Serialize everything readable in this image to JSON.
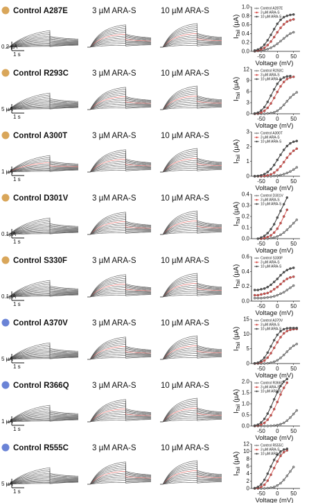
{
  "columns": {
    "c2": "3 µM ARA-S",
    "c3": "10 µM ARA-S"
  },
  "colors": {
    "orange_dot": "#d9a65a",
    "blue_dot": "#6a83d6",
    "control_line": "#333333",
    "control_marker": "#9a9a9a",
    "ara3": "#d9534f",
    "ara10": "#222222",
    "trace_grey": "#555555",
    "trace_red": "#d9534f"
  },
  "xaxis": {
    "label": "Voltage (mV)",
    "ticks": [
      "-50",
      "0",
      "50"
    ]
  },
  "yaxis": {
    "label_main": "I",
    "label_sub": "Tail",
    "label_unit": " (µA)"
  },
  "rows": [
    {
      "title": "Control A287E",
      "dot": "orange",
      "scale_current": "0.2 µA",
      "scale_time": "1 s",
      "y_ticks": [
        "0.0",
        "0.2",
        "0.4",
        "0.6",
        "0.8",
        "1.0"
      ],
      "legend": [
        "Control A287E",
        "3 µM ARA-S",
        "10 µM ARA-S"
      ]
    },
    {
      "title": "Control R293C",
      "dot": "orange",
      "scale_current": "5 µA",
      "scale_time": "1 s",
      "y_ticks": [
        "0",
        "3",
        "6",
        "9",
        "12"
      ],
      "legend": [
        "Control R293C",
        "3 µM ARA-S",
        "10 µM ARA-S"
      ]
    },
    {
      "title": "Control A300T",
      "dot": "orange",
      "scale_current": "1 µA",
      "scale_time": "1 s",
      "y_ticks": [
        "0",
        "1",
        "2",
        "3"
      ],
      "legend": [
        "Control A300T",
        "3 µM ARA-S",
        "10 µM ARA-S"
      ]
    },
    {
      "title": "Control D301V",
      "dot": "orange",
      "scale_current": "0.1µA",
      "scale_time": "1 s",
      "y_ticks": [
        "0.0",
        "0.1",
        "0.2",
        "0.3",
        "0.4"
      ],
      "legend": [
        "Control D301V",
        "3 µM ARA-S",
        "10 µM ARA-S"
      ]
    },
    {
      "title": "Control S330F",
      "dot": "orange",
      "scale_current": "0.1µA",
      "scale_time": "1 s",
      "y_ticks": [
        "0.0",
        "0.2",
        "0.4",
        "0.6"
      ],
      "legend": [
        "Control S330F",
        "3 µM ARA-S",
        "10 µM ARA-S"
      ]
    },
    {
      "title": "Control A370V",
      "dot": "blue",
      "scale_current": "5 µA",
      "scale_time": "1 s",
      "y_ticks": [
        "0",
        "5",
        "10",
        "15"
      ],
      "legend": [
        "Control A370V",
        "3 µM ARA-S",
        "10 µM ARA-S"
      ]
    },
    {
      "title": "Control R366Q",
      "dot": "blue",
      "scale_current": "1 µA",
      "scale_time": "1 s",
      "y_ticks": [
        "0.0",
        "0.5",
        "1.0",
        "1.5",
        "2.0"
      ],
      "legend": [
        "Control R366Q",
        "3 µM ARA-S",
        "10 µM ARA-S"
      ]
    },
    {
      "title": "Control R555C",
      "dot": "blue",
      "scale_current": "5 µA",
      "scale_time": "1 s",
      "y_ticks": [
        "0",
        "2",
        "4",
        "6",
        "8",
        "10",
        "12"
      ],
      "legend": [
        "Control R555C",
        "3 µM ARA-S",
        "10 µM ARA-S"
      ]
    }
  ],
  "chart_data": [
    {
      "type": "line",
      "row": "A287E",
      "xlim": [
        -80,
        70
      ],
      "ylim": [
        0,
        1.0
      ],
      "series": [
        {
          "name": "Control A287E",
          "x": [
            -70,
            -60,
            -50,
            -40,
            -30,
            -20,
            -10,
            0,
            10,
            20,
            30,
            40,
            50
          ],
          "y": [
            0.0,
            0.01,
            0.02,
            0.03,
            0.05,
            0.08,
            0.12,
            0.17,
            0.23,
            0.29,
            0.35,
            0.4,
            0.43
          ]
        },
        {
          "name": "3 µM ARA-S",
          "x": [
            -70,
            -60,
            -50,
            -40,
            -30,
            -20,
            -10,
            0,
            10,
            20,
            30,
            40,
            50
          ],
          "y": [
            0.01,
            0.02,
            0.04,
            0.08,
            0.14,
            0.22,
            0.32,
            0.43,
            0.53,
            0.61,
            0.67,
            0.7,
            0.72
          ]
        },
        {
          "name": "10 µM ARA-S",
          "x": [
            -70,
            -60,
            -50,
            -40,
            -30,
            -20,
            -10,
            0,
            10,
            20,
            30,
            40,
            50
          ],
          "y": [
            0.02,
            0.04,
            0.08,
            0.15,
            0.25,
            0.37,
            0.5,
            0.62,
            0.71,
            0.77,
            0.8,
            0.82,
            0.83
          ]
        }
      ]
    },
    {
      "type": "line",
      "row": "R293C",
      "xlim": [
        -80,
        70
      ],
      "ylim": [
        0,
        12
      ],
      "series": [
        {
          "name": "Control R293C",
          "x": [
            -70,
            -60,
            -50,
            -40,
            -30,
            -20,
            -10,
            0,
            10,
            20,
            30,
            40,
            50,
            60
          ],
          "y": [
            0,
            0,
            0,
            0,
            0.1,
            0.2,
            0.4,
            0.8,
            1.5,
            2.4,
            3.4,
            4.4,
            5.2,
            5.8
          ]
        },
        {
          "name": "3 µM ARA-S",
          "x": [
            -70,
            -60,
            -50,
            -40,
            -30,
            -20,
            -10,
            0,
            10,
            20,
            30,
            40,
            50
          ],
          "y": [
            0,
            0.1,
            0.3,
            0.8,
            1.6,
            2.8,
            4.3,
            5.9,
            7.4,
            8.6,
            9.4,
            9.8,
            10
          ]
        },
        {
          "name": "10 µM ARA-S",
          "x": [
            -70,
            -60,
            -50,
            -40,
            -30,
            -20,
            -10,
            0,
            10,
            20,
            30,
            40
          ],
          "y": [
            0.1,
            0.3,
            0.9,
            1.8,
            3.2,
            4.9,
            6.6,
            8.1,
            9.2,
            9.8,
            10.1,
            10.2
          ]
        }
      ]
    },
    {
      "type": "line",
      "row": "A300T",
      "xlim": [
        -80,
        70
      ],
      "ylim": [
        0,
        3
      ],
      "series": [
        {
          "name": "Control A300T",
          "x": [
            -70,
            -60,
            -50,
            -40,
            -30,
            -20,
            -10,
            0,
            10,
            20,
            30,
            40,
            50,
            60
          ],
          "y": [
            0,
            0,
            0,
            0,
            0,
            0,
            0.02,
            0.04,
            0.08,
            0.14,
            0.22,
            0.32,
            0.45,
            0.6
          ]
        },
        {
          "name": "3 µM ARA-S",
          "x": [
            -70,
            -60,
            -50,
            -40,
            -30,
            -20,
            -10,
            0,
            10,
            20,
            30,
            40,
            50,
            60
          ],
          "y": [
            0,
            0,
            0,
            0.02,
            0.06,
            0.12,
            0.24,
            0.42,
            0.66,
            0.95,
            1.25,
            1.52,
            1.72,
            1.86
          ]
        },
        {
          "name": "10 µM ARA-S",
          "x": [
            -70,
            -60,
            -50,
            -40,
            -30,
            -20,
            -10,
            0,
            10,
            20,
            30,
            40,
            50,
            60
          ],
          "y": [
            0,
            0.02,
            0.06,
            0.14,
            0.28,
            0.48,
            0.76,
            1.1,
            1.45,
            1.78,
            2.04,
            2.22,
            2.33,
            2.38
          ]
        }
      ]
    },
    {
      "type": "line",
      "row": "D301V",
      "xlim": [
        -80,
        70
      ],
      "ylim": [
        0,
        0.4
      ],
      "series": [
        {
          "name": "Control D301V",
          "x": [
            -50,
            -40,
            -30,
            -20,
            -10,
            0,
            10,
            20,
            30,
            40,
            50,
            60
          ],
          "y": [
            0.0,
            0.0,
            0.0,
            0.005,
            0.01,
            0.02,
            0.035,
            0.055,
            0.08,
            0.11,
            0.14,
            0.17
          ]
        },
        {
          "name": "3 µM ARA-S",
          "x": [
            -50,
            -40,
            -30,
            -20,
            -10,
            0,
            10,
            20,
            30
          ],
          "y": [
            0.0,
            0.005,
            0.015,
            0.03,
            0.055,
            0.09,
            0.14,
            0.2,
            0.26
          ]
        },
        {
          "name": "10 µM ARA-S",
          "x": [
            -60,
            -50,
            -40,
            -30,
            -20,
            -10,
            0,
            10,
            20,
            30
          ],
          "y": [
            0.0,
            0.01,
            0.025,
            0.05,
            0.085,
            0.13,
            0.19,
            0.25,
            0.31,
            0.37
          ]
        }
      ]
    },
    {
      "type": "line",
      "row": "S330F",
      "xlim": [
        -80,
        70
      ],
      "ylim": [
        0,
        0.6
      ],
      "series": [
        {
          "name": "Control S330F",
          "x": [
            -70,
            -60,
            -50,
            -40,
            -30,
            -20,
            -10,
            0,
            10,
            20,
            30,
            40,
            50
          ],
          "y": [
            0.04,
            0.04,
            0.04,
            0.045,
            0.05,
            0.055,
            0.065,
            0.08,
            0.1,
            0.12,
            0.15,
            0.18,
            0.21
          ]
        },
        {
          "name": "3 µM ARA-S",
          "x": [
            -70,
            -60,
            -50,
            -40,
            -30,
            -20,
            -10,
            0,
            10,
            20,
            30,
            40,
            50
          ],
          "y": [
            0.08,
            0.08,
            0.09,
            0.1,
            0.11,
            0.13,
            0.16,
            0.19,
            0.23,
            0.27,
            0.3,
            0.32,
            0.33
          ]
        },
        {
          "name": "10 µM ARA-S",
          "x": [
            -70,
            -60,
            -50,
            -40,
            -30,
            -20,
            -10,
            0,
            10,
            20,
            30,
            40,
            50
          ],
          "y": [
            0.15,
            0.15,
            0.16,
            0.17,
            0.19,
            0.22,
            0.26,
            0.3,
            0.35,
            0.39,
            0.42,
            0.44,
            0.45
          ]
        }
      ]
    },
    {
      "type": "line",
      "row": "A370V",
      "xlim": [
        -80,
        70
      ],
      "ylim": [
        0,
        15
      ],
      "series": [
        {
          "name": "Control A370V",
          "x": [
            -70,
            -60,
            -50,
            -40,
            -30,
            -20,
            -10,
            0,
            10,
            20,
            30,
            40,
            50,
            60
          ],
          "y": [
            0,
            0,
            0,
            0,
            0.1,
            0.3,
            0.6,
            1.1,
            1.9,
            2.9,
            4.0,
            5.1,
            6.0,
            6.6
          ]
        },
        {
          "name": "3 µM ARA-S",
          "x": [
            -70,
            -60,
            -50,
            -40,
            -30,
            -20,
            -10,
            0,
            10,
            20,
            30,
            40,
            50,
            60
          ],
          "y": [
            0,
            0.1,
            0.4,
            1.0,
            2.0,
            3.5,
            5.3,
            7.2,
            8.9,
            10.2,
            11.0,
            11.4,
            11.6,
            11.7
          ]
        },
        {
          "name": "10 µM ARA-S",
          "x": [
            -70,
            -60,
            -50,
            -40,
            -30,
            -20,
            -10,
            0,
            10,
            20,
            30,
            40,
            50,
            60
          ],
          "y": [
            0.1,
            0.3,
            0.9,
            2.0,
            3.7,
            5.8,
            7.9,
            9.7,
            10.9,
            11.6,
            11.9,
            12.0,
            12.0,
            12.0
          ]
        }
      ]
    },
    {
      "type": "line",
      "row": "R366Q",
      "xlim": [
        -80,
        70
      ],
      "ylim": [
        0,
        2.0
      ],
      "series": [
        {
          "name": "Control R366Q",
          "x": [
            -70,
            -60,
            -50,
            -40,
            -30,
            -20,
            -10,
            0,
            10,
            20,
            30,
            40,
            50,
            60
          ],
          "y": [
            0,
            0,
            0,
            0,
            0,
            0.01,
            0.02,
            0.04,
            0.08,
            0.14,
            0.24,
            0.38,
            0.54,
            0.7
          ]
        },
        {
          "name": "3 µM ARA-S",
          "x": [
            -70,
            -60,
            -50,
            -40,
            -30,
            -20,
            -10,
            0,
            10,
            20,
            30
          ],
          "y": [
            0,
            0.02,
            0.06,
            0.14,
            0.28,
            0.48,
            0.76,
            1.08,
            1.42,
            1.72,
            1.95
          ]
        },
        {
          "name": "10 µM ARA-S",
          "x": [
            -70,
            -60,
            -50,
            -40,
            -30,
            -20,
            -10,
            0,
            10,
            20,
            30
          ],
          "y": [
            0.02,
            0.06,
            0.16,
            0.32,
            0.56,
            0.86,
            1.2,
            1.52,
            1.8,
            2.0,
            2.12
          ]
        }
      ]
    },
    {
      "type": "line",
      "row": "R555C",
      "xlim": [
        -80,
        70
      ],
      "ylim": [
        0,
        12
      ],
      "series": [
        {
          "name": "Control R555C",
          "x": [
            -70,
            -60,
            -50,
            -40,
            -30,
            -20,
            -10,
            0,
            10,
            20,
            30,
            40,
            50
          ],
          "y": [
            0,
            0,
            0,
            0,
            0.1,
            0.2,
            0.4,
            0.8,
            1.4,
            2.3,
            3.4,
            4.6,
            5.8
          ]
        },
        {
          "name": "3 µM ARA-S",
          "x": [
            -70,
            -60,
            -50,
            -40,
            -30,
            -20,
            -10,
            0,
            10,
            20,
            30
          ],
          "y": [
            0,
            0.1,
            0.4,
            1.0,
            2.1,
            3.7,
            5.5,
            7.3,
            8.8,
            9.8,
            10.3
          ]
        },
        {
          "name": "10 µM ARA-S",
          "x": [
            -70,
            -60,
            -50,
            -40,
            -30,
            -20,
            -10,
            0,
            10,
            20,
            30
          ],
          "y": [
            0.1,
            0.4,
            1.1,
            2.3,
            4.0,
            5.9,
            7.7,
            9.1,
            10.0,
            10.5,
            10.7
          ]
        }
      ]
    }
  ]
}
